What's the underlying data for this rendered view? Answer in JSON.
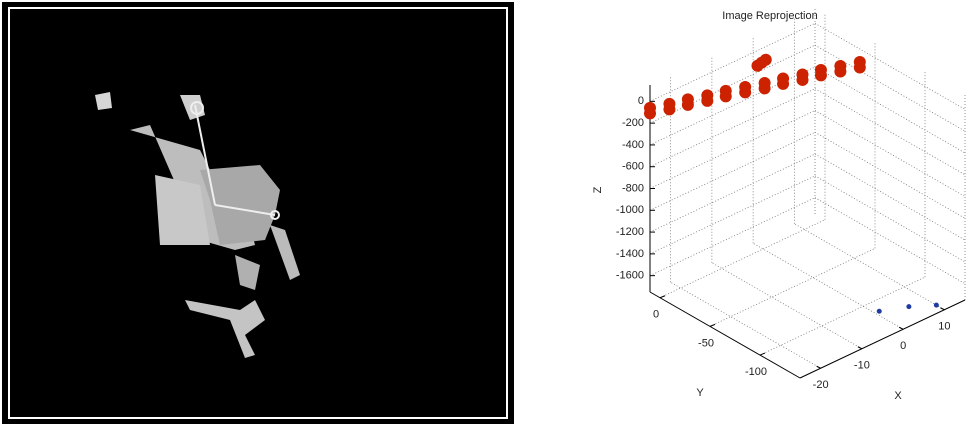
{
  "chart_data": {
    "type": "scatter3d",
    "title": "Image Reprojection",
    "x_label": "X",
    "y_label": "Y",
    "z_label": "Z",
    "xlim": [
      -25,
      15
    ],
    "ylim": [
      -140,
      10
    ],
    "zlim": [
      -1750,
      150
    ],
    "xticks": [
      -20,
      -10,
      0,
      10
    ],
    "yticks": [
      0,
      -50,
      -100
    ],
    "zticks": [
      0,
      -200,
      -400,
      -600,
      -800,
      -1000,
      -1200,
      -1400,
      -1600
    ],
    "grid": true,
    "series": [
      {
        "color": "#cc2200",
        "x": [
          -25,
          -21.5,
          -18,
          -14.5,
          -11,
          -7.5,
          -4,
          -0.5,
          3,
          6.5,
          10,
          13.5,
          -25,
          -21.5,
          -18,
          -14.5,
          -11,
          -7.5,
          -4,
          -0.5,
          3,
          6.5,
          10,
          13.5,
          -5,
          -4,
          -3
        ],
        "y": [
          10,
          5,
          1,
          -4,
          -8,
          -13,
          -18,
          -22,
          -27,
          -31,
          -36,
          -41,
          10,
          5,
          1,
          -4,
          -8,
          -13,
          -18,
          -22,
          -27,
          -31,
          -36,
          -41,
          -15,
          -15,
          -15
        ],
        "z": [
          -60,
          -60,
          -60,
          -60,
          -60,
          -60,
          -60,
          -60,
          -60,
          -60,
          -60,
          -60,
          -110,
          -110,
          -110,
          -110,
          -110,
          -110,
          -110,
          -110,
          -110,
          -110,
          -110,
          -110,
          100,
          110,
          120
        ]
      },
      {
        "color": "#1f3aa0",
        "x": [
          1,
          6,
          10
        ],
        "y": [
          -112,
          -121,
          -132
        ],
        "z": [
          -1750,
          -1750,
          -1750
        ]
      }
    ]
  }
}
